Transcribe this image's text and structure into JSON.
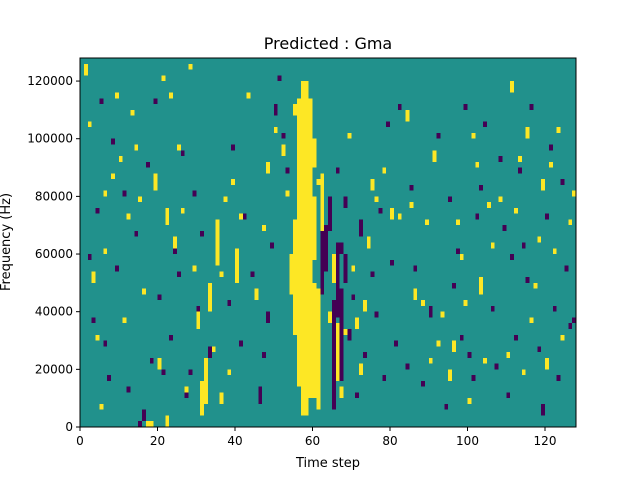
{
  "chart_data": {
    "type": "heatmap",
    "title": "Predicted : Gma",
    "xlabel": "Time step",
    "ylabel": "Frequency (Hz)",
    "xlim": [
      0,
      128
    ],
    "ylim": [
      0,
      128000
    ],
    "x_ticks": [
      0,
      20,
      40,
      60,
      80,
      100,
      120
    ],
    "x_tick_labels": [
      "0",
      "20",
      "40",
      "60",
      "80",
      "100",
      "120"
    ],
    "y_ticks": [
      0,
      20000,
      40000,
      60000,
      80000,
      100000,
      120000
    ],
    "y_tick_labels": [
      "0",
      "20000",
      "40000",
      "60000",
      "80000",
      "100000",
      "120000"
    ],
    "n_time_steps": 128,
    "n_freq_bins": 64,
    "colors": {
      "background": "#21918c",
      "high": "#fde725",
      "low": "#440154"
    },
    "high_cells": [
      [
        56,
        7,
        57
      ],
      [
        57,
        2,
        60
      ],
      [
        58,
        2,
        60
      ],
      [
        59,
        5,
        57
      ],
      [
        60,
        5,
        25
      ],
      [
        60,
        29,
        40
      ],
      [
        61,
        3,
        24
      ],
      [
        55,
        16,
        36
      ],
      [
        62,
        33,
        44
      ],
      [
        54,
        23,
        30
      ],
      [
        64,
        18,
        20
      ],
      [
        66,
        8,
        18
      ],
      [
        65,
        25,
        30
      ],
      [
        60,
        45,
        50
      ],
      [
        61,
        42,
        43
      ],
      [
        31,
        2,
        8
      ],
      [
        32,
        4,
        12
      ],
      [
        33,
        20,
        25
      ],
      [
        34,
        13,
        14
      ],
      [
        35,
        28,
        36
      ],
      [
        36,
        4,
        6
      ],
      [
        36,
        26,
        27
      ],
      [
        37,
        39,
        40
      ],
      [
        38,
        9,
        10
      ],
      [
        40,
        25,
        31
      ],
      [
        41,
        36,
        37
      ],
      [
        39,
        42,
        43
      ],
      [
        30,
        17,
        21
      ],
      [
        29,
        27,
        28
      ],
      [
        17,
        0,
        1
      ],
      [
        18,
        0,
        1
      ],
      [
        22,
        0,
        2
      ],
      [
        27,
        6,
        7
      ],
      [
        24,
        31,
        33
      ],
      [
        26,
        37,
        38
      ],
      [
        25,
        48,
        49
      ],
      [
        23,
        57,
        58
      ],
      [
        19,
        41,
        44
      ],
      [
        12,
        36,
        37
      ],
      [
        10,
        46,
        47
      ],
      [
        11,
        18,
        19
      ],
      [
        13,
        54,
        55
      ],
      [
        1,
        61,
        63
      ],
      [
        2,
        52,
        53
      ],
      [
        3,
        25,
        27
      ],
      [
        4,
        15,
        16
      ],
      [
        5,
        3,
        4
      ],
      [
        6,
        30,
        31
      ],
      [
        6,
        40,
        41
      ],
      [
        8,
        43,
        44
      ],
      [
        9,
        57,
        58
      ],
      [
        14,
        48,
        49
      ],
      [
        15,
        39,
        40
      ],
      [
        16,
        23,
        24
      ],
      [
        20,
        10,
        12
      ],
      [
        21,
        60,
        61
      ],
      [
        28,
        62,
        63
      ],
      [
        22,
        35,
        38
      ],
      [
        43,
        57,
        58
      ],
      [
        45,
        22,
        24
      ],
      [
        47,
        34,
        35
      ],
      [
        48,
        44,
        46
      ],
      [
        50,
        51,
        52
      ],
      [
        52,
        47,
        49
      ],
      [
        53,
        40,
        41
      ],
      [
        55,
        54,
        56
      ],
      [
        63,
        30,
        31
      ],
      [
        67,
        5,
        7
      ],
      [
        68,
        16,
        17
      ],
      [
        69,
        50,
        51
      ],
      [
        70,
        27,
        28
      ],
      [
        71,
        17,
        19
      ],
      [
        72,
        9,
        11
      ],
      [
        73,
        20,
        22
      ],
      [
        74,
        31,
        33
      ],
      [
        75,
        41,
        43
      ],
      [
        76,
        39,
        40
      ],
      [
        78,
        44,
        45
      ],
      [
        80,
        36,
        38
      ],
      [
        82,
        36,
        37
      ],
      [
        84,
        53,
        55
      ],
      [
        85,
        38,
        39
      ],
      [
        86,
        22,
        24
      ],
      [
        88,
        21,
        22
      ],
      [
        89,
        35,
        36
      ],
      [
        90,
        11,
        12
      ],
      [
        91,
        46,
        48
      ],
      [
        92,
        14,
        15
      ],
      [
        93,
        19,
        20
      ],
      [
        95,
        8,
        10
      ],
      [
        96,
        13,
        15
      ],
      [
        97,
        35,
        36
      ],
      [
        98,
        29,
        30
      ],
      [
        99,
        21,
        22
      ],
      [
        100,
        4,
        5
      ],
      [
        101,
        50,
        51
      ],
      [
        102,
        45,
        46
      ],
      [
        103,
        23,
        26
      ],
      [
        104,
        11,
        12
      ],
      [
        105,
        38,
        39
      ],
      [
        106,
        31,
        32
      ],
      [
        108,
        39,
        40
      ],
      [
        110,
        12,
        13
      ],
      [
        111,
        58,
        60
      ],
      [
        112,
        37,
        38
      ],
      [
        113,
        46,
        47
      ],
      [
        114,
        9,
        10
      ],
      [
        115,
        50,
        52
      ],
      [
        116,
        18,
        19
      ],
      [
        117,
        24,
        25
      ],
      [
        118,
        32,
        33
      ],
      [
        119,
        41,
        43
      ],
      [
        120,
        10,
        12
      ],
      [
        121,
        45,
        46
      ],
      [
        122,
        30,
        31
      ],
      [
        123,
        51,
        52
      ],
      [
        124,
        15,
        16
      ],
      [
        126,
        35,
        36
      ],
      [
        127,
        40,
        41
      ]
    ],
    "low_cells": [
      [
        65,
        3,
        22
      ],
      [
        66,
        19,
        32
      ],
      [
        67,
        8,
        24
      ],
      [
        68,
        25,
        30
      ],
      [
        62,
        23,
        34
      ],
      [
        63,
        27,
        35
      ],
      [
        64,
        34,
        40
      ],
      [
        67,
        30,
        32
      ],
      [
        68,
        38,
        40
      ],
      [
        66,
        44,
        45
      ],
      [
        70,
        22,
        23
      ],
      [
        69,
        15,
        17
      ],
      [
        72,
        33,
        36
      ],
      [
        15,
        0,
        1
      ],
      [
        16,
        1,
        3
      ],
      [
        21,
        9,
        10
      ],
      [
        20,
        22,
        23
      ],
      [
        23,
        15,
        16
      ],
      [
        24,
        30,
        31
      ],
      [
        25,
        26,
        27
      ],
      [
        26,
        47,
        48
      ],
      [
        27,
        5,
        6
      ],
      [
        28,
        9,
        10
      ],
      [
        29,
        40,
        41
      ],
      [
        30,
        20,
        21
      ],
      [
        31,
        33,
        34
      ],
      [
        33,
        12,
        14
      ],
      [
        46,
        4,
        7
      ],
      [
        47,
        12,
        13
      ],
      [
        48,
        18,
        20
      ],
      [
        49,
        31,
        32
      ],
      [
        50,
        54,
        56
      ],
      [
        51,
        60,
        61
      ],
      [
        52,
        50,
        51
      ],
      [
        53,
        44,
        45
      ],
      [
        44,
        26,
        27
      ],
      [
        42,
        36,
        37
      ],
      [
        41,
        14,
        15
      ],
      [
        38,
        21,
        22
      ],
      [
        39,
        48,
        49
      ],
      [
        18,
        11,
        12
      ],
      [
        19,
        56,
        57
      ],
      [
        17,
        45,
        46
      ],
      [
        14,
        33,
        34
      ],
      [
        11,
        40,
        41
      ],
      [
        9,
        27,
        28
      ],
      [
        8,
        49,
        50
      ],
      [
        7,
        8,
        9
      ],
      [
        6,
        14,
        15
      ],
      [
        4,
        37,
        38
      ],
      [
        3,
        18,
        19
      ],
      [
        5,
        56,
        57
      ],
      [
        2,
        29,
        30
      ],
      [
        12,
        6,
        7
      ],
      [
        71,
        5,
        6
      ],
      [
        73,
        12,
        13
      ],
      [
        75,
        26,
        27
      ],
      [
        76,
        19,
        20
      ],
      [
        77,
        37,
        38
      ],
      [
        78,
        8,
        9
      ],
      [
        79,
        52,
        53
      ],
      [
        80,
        28,
        29
      ],
      [
        81,
        14,
        15
      ],
      [
        82,
        55,
        56
      ],
      [
        84,
        10,
        11
      ],
      [
        85,
        41,
        42
      ],
      [
        86,
        27,
        28
      ],
      [
        88,
        7,
        8
      ],
      [
        90,
        19,
        21
      ],
      [
        92,
        50,
        51
      ],
      [
        94,
        3,
        4
      ],
      [
        95,
        39,
        40
      ],
      [
        96,
        24,
        25
      ],
      [
        97,
        30,
        31
      ],
      [
        98,
        15,
        16
      ],
      [
        99,
        55,
        56
      ],
      [
        100,
        12,
        13
      ],
      [
        101,
        8,
        9
      ],
      [
        102,
        36,
        37
      ],
      [
        103,
        41,
        42
      ],
      [
        104,
        52,
        53
      ],
      [
        106,
        20,
        21
      ],
      [
        107,
        10,
        11
      ],
      [
        108,
        46,
        47
      ],
      [
        109,
        34,
        35
      ],
      [
        110,
        5,
        6
      ],
      [
        111,
        29,
        30
      ],
      [
        112,
        15,
        16
      ],
      [
        113,
        44,
        45
      ],
      [
        114,
        31,
        32
      ],
      [
        115,
        25,
        26
      ],
      [
        116,
        55,
        56
      ],
      [
        118,
        13,
        14
      ],
      [
        119,
        2,
        4
      ],
      [
        120,
        36,
        37
      ],
      [
        121,
        48,
        49
      ],
      [
        122,
        20,
        21
      ],
      [
        123,
        8,
        9
      ],
      [
        124,
        42,
        43
      ],
      [
        125,
        27,
        28
      ],
      [
        126,
        17,
        18
      ],
      [
        127,
        18,
        19
      ]
    ]
  }
}
